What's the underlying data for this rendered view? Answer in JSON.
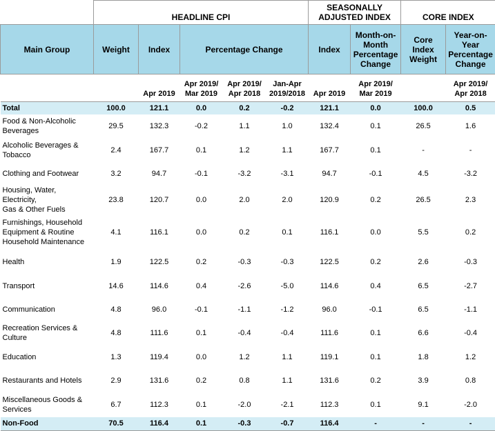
{
  "header": {
    "groups": [
      "HEADLINE CPI",
      "SEASONALLY ADJUSTED INDEX",
      "CORE INDEX"
    ],
    "columns": [
      "Main Group",
      "Weight",
      "Index",
      "Percentage Change",
      "Index",
      "Month-on-\nMonth\nPercentage\nChange",
      "Core\nIndex\nWeight",
      "Year-on-\nYear\nPercentage\nChange"
    ],
    "subheaders": [
      "Apr 2019",
      "Apr 2019/\nMar 2019",
      "Apr 2019/\nApr 2018",
      "Jan-Apr\n2019/2018",
      "Apr 2019",
      "Apr 2019/\nMar 2019",
      "Apr 2019/\nApr 2018"
    ]
  },
  "table": {
    "rows": [
      [
        "Total",
        "100.0",
        "121.1",
        "0.0",
        "0.2",
        "-0.2",
        "121.1",
        "0.0",
        "100.0",
        "0.5"
      ],
      [
        "Food & Non-Alcoholic\nBeverages",
        "29.5",
        "132.3",
        "-0.2",
        "1.1",
        "1.0",
        "132.4",
        "0.1",
        "26.5",
        "1.6"
      ],
      [
        "Alcoholic Beverages &\nTobacco",
        "2.4",
        "167.7",
        "0.1",
        "1.2",
        "1.1",
        "167.7",
        "0.1",
        "-",
        "-"
      ],
      [
        "Clothing and Footwear",
        "3.2",
        "94.7",
        "-0.1",
        "-3.2",
        "-3.1",
        "94.7",
        "-0.1",
        "4.5",
        "-3.2"
      ],
      [
        "Housing, Water, Electricity,\nGas & Other Fuels",
        "23.8",
        "120.7",
        "0.0",
        "2.0",
        "2.0",
        "120.9",
        "0.2",
        "26.5",
        "2.3"
      ],
      [
        "Furnishings, Household\nEquipment  & Routine\nHousehold Maintenance",
        "4.1",
        "116.1",
        "0.0",
        "0.2",
        "0.1",
        "116.1",
        "0.0",
        "5.5",
        "0.2"
      ],
      [
        "Health",
        "1.9",
        "122.5",
        "0.2",
        "-0.3",
        "-0.3",
        "122.5",
        "0.2",
        "2.6",
        "-0.3"
      ],
      [
        "Transport",
        "14.6",
        "114.6",
        "0.4",
        "-2.6",
        "-5.0",
        "114.6",
        "0.4",
        "6.5",
        "-2.7"
      ],
      [
        "Communication",
        "4.8",
        "96.0",
        "-0.1",
        "-1.1",
        "-1.2",
        "96.0",
        "-0.1",
        "6.5",
        "-1.1"
      ],
      [
        "Recreation Services &\nCulture",
        "4.8",
        "111.6",
        "0.1",
        "-0.4",
        "-0.4",
        "111.6",
        "0.1",
        "6.6",
        "-0.4"
      ],
      [
        "Education",
        "1.3",
        "119.4",
        "0.0",
        "1.2",
        "1.1",
        "119.1",
        "0.1",
        "1.8",
        "1.2"
      ],
      [
        "Restaurants and Hotels",
        "2.9",
        "131.6",
        "0.2",
        "0.8",
        "1.1",
        "131.6",
        "0.2",
        "3.9",
        "0.8"
      ],
      [
        "Miscellaneous Goods &\nServices",
        "6.7",
        "112.3",
        "0.1",
        "-2.0",
        "-2.1",
        "112.3",
        "0.1",
        "9.1",
        "-2.0"
      ],
      [
        "Non-Food",
        "70.5",
        "116.4",
        "0.1",
        "-0.3",
        "-0.7",
        "116.4",
        "-",
        "-",
        "-"
      ]
    ]
  }
}
